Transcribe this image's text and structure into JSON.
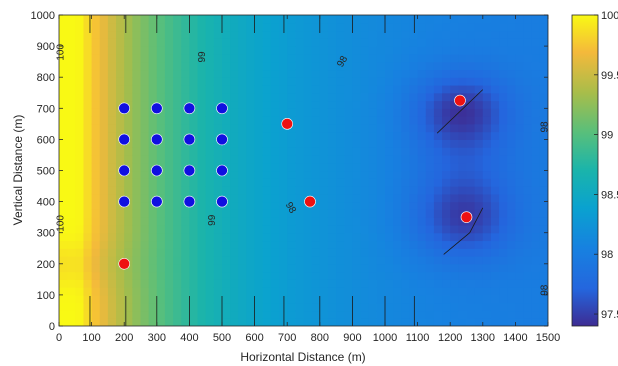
{
  "chart_data": {
    "type": "heatmap",
    "subtype": "filled-contour",
    "title": "",
    "xlabel": "Horizontal Distance (m)",
    "ylabel": "Vertical Distance (m)",
    "xlim": [
      0,
      1500
    ],
    "ylim": [
      0,
      1000
    ],
    "xticks": [
      0,
      100,
      200,
      300,
      400,
      500,
      600,
      700,
      800,
      900,
      1000,
      1100,
      1200,
      1300,
      1400,
      1500
    ],
    "yticks": [
      0,
      100,
      200,
      300,
      400,
      500,
      600,
      700,
      800,
      900,
      1000
    ],
    "colorbar": {
      "range": [
        97.4,
        100
      ],
      "ticks": [
        97.5,
        98,
        98.5,
        99,
        99.5,
        100
      ],
      "tick_labels": [
        "97.5",
        "98",
        "98.5",
        "99",
        "99.5",
        "100"
      ],
      "colormap": "parula"
    },
    "contour_labels": [
      {
        "text": "100",
        "x": 5,
        "y": 880,
        "rot": -90
      },
      {
        "text": "99",
        "x": 440,
        "y": 865,
        "rot": -90
      },
      {
        "text": "98",
        "x": 870,
        "y": 850,
        "rot": -60
      },
      {
        "text": "98",
        "x": 1490,
        "y": 640,
        "rot": -90
      },
      {
        "text": "98",
        "x": 710,
        "y": 380,
        "rot": 60
      },
      {
        "text": "99",
        "x": 470,
        "y": 340,
        "rot": -90
      },
      {
        "text": "100",
        "x": 5,
        "y": 330,
        "rot": -90
      },
      {
        "text": "98",
        "x": 1490,
        "y": 115,
        "rot": -90
      }
    ],
    "series": [
      {
        "marker": "circle",
        "color": "#1010e0",
        "points": [
          [
            200,
            700
          ],
          [
            300,
            700
          ],
          [
            400,
            700
          ],
          [
            500,
            700
          ],
          [
            200,
            600
          ],
          [
            300,
            600
          ],
          [
            400,
            600
          ],
          [
            500,
            600
          ],
          [
            200,
            500
          ],
          [
            300,
            500
          ],
          [
            400,
            500
          ],
          [
            500,
            500
          ],
          [
            200,
            400
          ],
          [
            300,
            400
          ],
          [
            400,
            400
          ],
          [
            500,
            400
          ]
        ]
      },
      {
        "marker": "circle",
        "color": "#ee1111",
        "points": [
          [
            200,
            200
          ],
          [
            700,
            650
          ],
          [
            770,
            400
          ],
          [
            1230,
            725
          ],
          [
            1250,
            350
          ]
        ]
      }
    ]
  }
}
